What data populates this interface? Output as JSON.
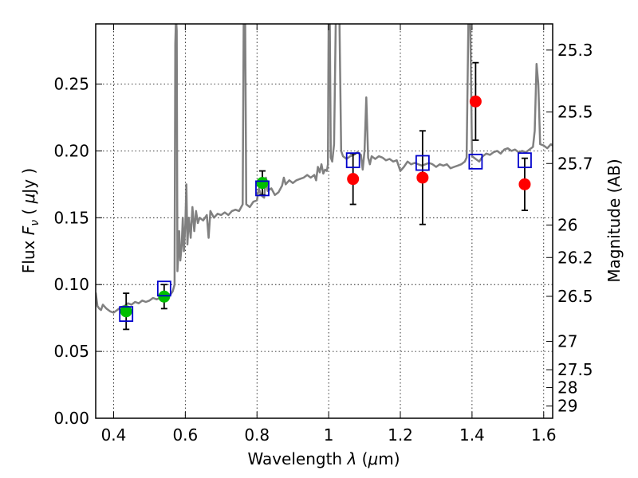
{
  "chart_data": {
    "type": "scatter",
    "xlabel": "Wavelength  λ (μm)",
    "ylabel": "Flux  F_ν  ( μJy )",
    "ylabel_parts": {
      "prefix": "Flux  ",
      "sym": "F",
      "sub": "ν",
      "middle": "  ( ",
      "mu": "μ",
      "unit": "Jy )"
    },
    "xlabel_parts": {
      "prefix": "Wavelength  ",
      "sym": "λ",
      "middle": " (",
      "mu": "μ",
      "unit": "m)"
    },
    "y2label": "Magnitude (AB)",
    "xlim": [
      0.35,
      1.625
    ],
    "ylim": [
      0.0,
      0.295
    ],
    "grid": true,
    "x_ticks": [
      {
        "value": 0.4,
        "label": "0.4"
      },
      {
        "value": 0.6,
        "label": "0.6"
      },
      {
        "value": 0.8,
        "label": "0.8"
      },
      {
        "value": 1.0,
        "label": "1"
      },
      {
        "value": 1.2,
        "label": "1.2"
      },
      {
        "value": 1.4,
        "label": "1.4"
      },
      {
        "value": 1.6,
        "label": "1.6"
      }
    ],
    "y_ticks": [
      {
        "value": 0.0,
        "label": "0.00"
      },
      {
        "value": 0.05,
        "label": "0.05"
      },
      {
        "value": 0.1,
        "label": "0.10"
      },
      {
        "value": 0.15,
        "label": "0.15"
      },
      {
        "value": 0.2,
        "label": "0.20"
      },
      {
        "value": 0.25,
        "label": "0.25"
      }
    ],
    "y2_ticks": [
      {
        "mag": 25.3,
        "label": "25.3"
      },
      {
        "mag": 25.5,
        "label": "25.5"
      },
      {
        "mag": 25.7,
        "label": "25.7"
      },
      {
        "mag": 26.0,
        "label": "26"
      },
      {
        "mag": 26.2,
        "label": "26.2"
      },
      {
        "mag": 26.5,
        "label": "26.5"
      },
      {
        "mag": 27.0,
        "label": "27"
      },
      {
        "mag": 27.5,
        "label": "27.5"
      },
      {
        "mag": 28.0,
        "label": "28"
      },
      {
        "mag": 29.0,
        "label": "29"
      }
    ],
    "spectrum": {
      "color": "#808080",
      "points": [
        [
          0.35,
          0.094
        ],
        [
          0.355,
          0.084
        ],
        [
          0.36,
          0.082
        ],
        [
          0.365,
          0.081
        ],
        [
          0.37,
          0.085
        ],
        [
          0.38,
          0.082
        ],
        [
          0.39,
          0.08
        ],
        [
          0.4,
          0.079
        ],
        [
          0.41,
          0.081
        ],
        [
          0.42,
          0.083
        ],
        [
          0.43,
          0.084
        ],
        [
          0.44,
          0.086
        ],
        [
          0.45,
          0.085
        ],
        [
          0.46,
          0.087
        ],
        [
          0.47,
          0.086
        ],
        [
          0.48,
          0.088
        ],
        [
          0.49,
          0.087
        ],
        [
          0.5,
          0.088
        ],
        [
          0.51,
          0.09
        ],
        [
          0.52,
          0.089
        ],
        [
          0.53,
          0.09
        ],
        [
          0.54,
          0.091
        ],
        [
          0.55,
          0.092
        ],
        [
          0.56,
          0.093
        ],
        [
          0.565,
          0.095
        ],
        [
          0.57,
          0.1
        ],
        [
          0.572,
          0.28
        ],
        [
          0.574,
          0.3
        ],
        [
          0.576,
          0.29
        ],
        [
          0.578,
          0.11
        ],
        [
          0.58,
          0.12
        ],
        [
          0.583,
          0.14
        ],
        [
          0.586,
          0.118
        ],
        [
          0.59,
          0.13
        ],
        [
          0.593,
          0.15
        ],
        [
          0.596,
          0.125
        ],
        [
          0.6,
          0.145
        ],
        [
          0.603,
          0.175
        ],
        [
          0.606,
          0.13
        ],
        [
          0.61,
          0.15
        ],
        [
          0.615,
          0.135
        ],
        [
          0.62,
          0.158
        ],
        [
          0.625,
          0.14
        ],
        [
          0.63,
          0.155
        ],
        [
          0.635,
          0.146
        ],
        [
          0.64,
          0.15
        ],
        [
          0.65,
          0.148
        ],
        [
          0.66,
          0.152
        ],
        [
          0.665,
          0.135
        ],
        [
          0.67,
          0.155
        ],
        [
          0.68,
          0.15
        ],
        [
          0.69,
          0.153
        ],
        [
          0.7,
          0.152
        ],
        [
          0.71,
          0.154
        ],
        [
          0.72,
          0.152
        ],
        [
          0.73,
          0.155
        ],
        [
          0.74,
          0.156
        ],
        [
          0.75,
          0.155
        ],
        [
          0.76,
          0.16
        ],
        [
          0.763,
          0.3
        ],
        [
          0.767,
          0.3
        ],
        [
          0.77,
          0.16
        ],
        [
          0.78,
          0.158
        ],
        [
          0.79,
          0.162
        ],
        [
          0.8,
          0.163
        ],
        [
          0.805,
          0.172
        ],
        [
          0.81,
          0.168
        ],
        [
          0.815,
          0.166
        ],
        [
          0.82,
          0.165
        ],
        [
          0.825,
          0.18
        ],
        [
          0.83,
          0.17
        ],
        [
          0.84,
          0.172
        ],
        [
          0.85,
          0.167
        ],
        [
          0.86,
          0.169
        ],
        [
          0.87,
          0.174
        ],
        [
          0.875,
          0.18
        ],
        [
          0.88,
          0.175
        ],
        [
          0.89,
          0.178
        ],
        [
          0.9,
          0.176
        ],
        [
          0.91,
          0.178
        ],
        [
          0.92,
          0.179
        ],
        [
          0.93,
          0.18
        ],
        [
          0.94,
          0.182
        ],
        [
          0.95,
          0.18
        ],
        [
          0.96,
          0.182
        ],
        [
          0.965,
          0.178
        ],
        [
          0.97,
          0.188
        ],
        [
          0.975,
          0.184
        ],
        [
          0.98,
          0.19
        ],
        [
          0.985,
          0.183
        ],
        [
          0.99,
          0.186
        ],
        [
          0.995,
          0.185
        ],
        [
          0.998,
          0.19
        ],
        [
          1.0,
          0.3
        ],
        [
          1.003,
          0.3
        ],
        [
          1.006,
          0.195
        ],
        [
          1.01,
          0.192
        ],
        [
          1.015,
          0.205
        ],
        [
          1.02,
          0.3
        ],
        [
          1.03,
          0.3
        ],
        [
          1.035,
          0.2
        ],
        [
          1.04,
          0.196
        ],
        [
          1.05,
          0.194
        ],
        [
          1.06,
          0.196
        ],
        [
          1.07,
          0.197
        ],
        [
          1.08,
          0.199
        ],
        [
          1.09,
          0.197
        ],
        [
          1.095,
          0.186
        ],
        [
          1.1,
          0.2
        ],
        [
          1.105,
          0.24
        ],
        [
          1.11,
          0.195
        ],
        [
          1.115,
          0.19
        ],
        [
          1.12,
          0.196
        ],
        [
          1.13,
          0.194
        ],
        [
          1.14,
          0.196
        ],
        [
          1.15,
          0.195
        ],
        [
          1.16,
          0.193
        ],
        [
          1.17,
          0.194
        ],
        [
          1.18,
          0.192
        ],
        [
          1.19,
          0.193
        ],
        [
          1.2,
          0.185
        ],
        [
          1.21,
          0.188
        ],
        [
          1.22,
          0.192
        ],
        [
          1.23,
          0.19
        ],
        [
          1.24,
          0.191
        ],
        [
          1.25,
          0.19
        ],
        [
          1.26,
          0.189
        ],
        [
          1.27,
          0.19
        ],
        [
          1.28,
          0.191
        ],
        [
          1.29,
          0.19
        ],
        [
          1.3,
          0.188
        ],
        [
          1.31,
          0.19
        ],
        [
          1.32,
          0.189
        ],
        [
          1.33,
          0.19
        ],
        [
          1.34,
          0.187
        ],
        [
          1.35,
          0.188
        ],
        [
          1.36,
          0.189
        ],
        [
          1.37,
          0.19
        ],
        [
          1.38,
          0.192
        ],
        [
          1.385,
          0.195
        ],
        [
          1.39,
          0.3
        ],
        [
          1.395,
          0.3
        ],
        [
          1.4,
          0.196
        ],
        [
          1.41,
          0.194
        ],
        [
          1.42,
          0.192
        ],
        [
          1.43,
          0.196
        ],
        [
          1.44,
          0.198
        ],
        [
          1.45,
          0.197
        ],
        [
          1.46,
          0.199
        ],
        [
          1.47,
          0.2
        ],
        [
          1.48,
          0.198
        ],
        [
          1.49,
          0.201
        ],
        [
          1.5,
          0.202
        ],
        [
          1.51,
          0.2
        ],
        [
          1.52,
          0.201
        ],
        [
          1.53,
          0.199
        ],
        [
          1.54,
          0.2
        ],
        [
          1.55,
          0.199
        ],
        [
          1.56,
          0.201
        ],
        [
          1.57,
          0.203
        ],
        [
          1.575,
          0.215
        ],
        [
          1.58,
          0.265
        ],
        [
          1.585,
          0.25
        ],
        [
          1.59,
          0.205
        ],
        [
          1.6,
          0.204
        ],
        [
          1.61,
          0.202
        ],
        [
          1.62,
          0.205
        ],
        [
          1.625,
          0.204
        ]
      ]
    },
    "series": [
      {
        "marker": "circle",
        "color": "#00bf00",
        "points": [
          {
            "x": 0.435,
            "y": 0.08,
            "err": 0.0135
          },
          {
            "x": 0.541,
            "y": 0.091,
            "err": 0.009
          },
          {
            "x": 0.815,
            "y": 0.176,
            "err": 0.009
          }
        ]
      },
      {
        "marker": "circle",
        "color": "#ff0000",
        "points": [
          {
            "x": 1.068,
            "y": 0.179,
            "err": 0.019
          },
          {
            "x": 1.262,
            "y": 0.18,
            "err": 0.035
          },
          {
            "x": 1.41,
            "y": 0.237,
            "err": 0.029
          },
          {
            "x": 1.547,
            "y": 0.175,
            "err": 0.0195
          }
        ]
      },
      {
        "marker": "square",
        "color": "#0000cc",
        "points": [
          {
            "x": 0.435,
            "y": 0.078
          },
          {
            "x": 0.541,
            "y": 0.097
          },
          {
            "x": 0.815,
            "y": 0.172
          },
          {
            "x": 1.068,
            "y": 0.193
          },
          {
            "x": 1.262,
            "y": 0.191
          },
          {
            "x": 1.41,
            "y": 0.192
          },
          {
            "x": 1.547,
            "y": 0.193
          }
        ]
      }
    ]
  }
}
